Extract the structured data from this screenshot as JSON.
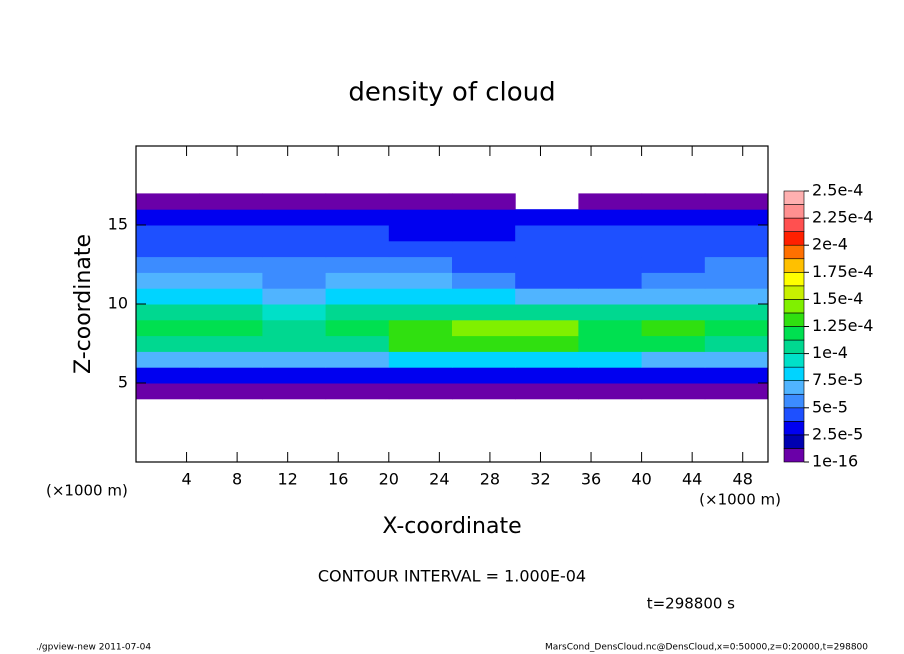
{
  "chart_data": {
    "type": "heatmap",
    "title": "density of cloud",
    "xlabel": "X-coordinate",
    "ylabel": "Z-coordinate",
    "x_unit": "(×1000 m)",
    "y_unit": "(×1000 m)",
    "xlim": [
      0,
      50
    ],
    "ylim": [
      0,
      20
    ],
    "xticks": [
      4,
      8,
      12,
      16,
      20,
      24,
      28,
      32,
      36,
      40,
      44,
      48
    ],
    "yticks": [
      5,
      10,
      15
    ],
    "x": [
      2.5,
      7.5,
      12.5,
      17.5,
      22.5,
      27.5,
      32.5,
      37.5,
      42.5,
      47.5
    ],
    "z": [
      4.5,
      5.5,
      6.5,
      7.5,
      8.5,
      9.5,
      10.5,
      11.5,
      12.5,
      13.5,
      14.5,
      15.5,
      16.5
    ],
    "values": [
      [
        5e-06,
        5e-06,
        5e-06,
        5e-06,
        5e-06,
        5e-06,
        5e-06,
        5e-06,
        5e-06,
        5e-06
      ],
      [
        3e-05,
        3e-05,
        2.8e-05,
        3e-05,
        3e-05,
        3.2e-05,
        3.4e-05,
        3e-05,
        3e-05,
        3.4e-05
      ],
      [
        7e-05,
        7e-05,
        6.8e-05,
        7.2e-05,
        7.6e-05,
        7.8e-05,
        8e-05,
        7.6e-05,
        7.2e-05,
        7e-05
      ],
      [
        0.00011,
        0.00011,
        0.000105,
        0.00011,
        0.000125,
        0.00013,
        0.00013,
        0.000115,
        0.00012,
        0.00011
      ],
      [
        0.00012,
        0.000118,
        0.00011,
        0.000118,
        0.000135,
        0.00014,
        0.000138,
        0.00012,
        0.000128,
        0.000115
      ],
      [
        0.0001,
        0.0001,
        9.5e-05,
        0.0001,
        0.00011,
        0.000112,
        0.000105,
        0.0001,
        0.000102,
        0.0001
      ],
      [
        7.5e-05,
        7.8e-05,
        7.2e-05,
        8e-05,
        8.2e-05,
        7.8e-05,
        7e-05,
        6.8e-05,
        7.2e-05,
        7.4e-05
      ],
      [
        6.5e-05,
        6.6e-05,
        6.2e-05,
        6.8e-05,
        6.8e-05,
        6e-05,
        4.8e-05,
        4.2e-05,
        5.5e-05,
        6e-05
      ],
      [
        5.5e-05,
        5.6e-05,
        5.2e-05,
        5.5e-05,
        5.2e-05,
        4.5e-05,
        4e-05,
        4.5e-05,
        4.8e-05,
        5.2e-05
      ],
      [
        4.6e-05,
        4.7e-05,
        4.5e-05,
        4.6e-05,
        4.2e-05,
        4e-05,
        4.2e-05,
        4.6e-05,
        4.4e-05,
        4.6e-05
      ],
      [
        4e-05,
        4e-05,
        3.8e-05,
        4e-05,
        3.6e-05,
        3.4e-05,
        4.8e-05,
        4.4e-05,
        4e-05,
        4e-05
      ],
      [
        3e-05,
        3e-05,
        2.8e-05,
        3e-05,
        2.8e-05,
        2.8e-05,
        3.2e-05,
        3e-05,
        3e-05,
        3e-05
      ],
      [
        5e-06,
        5e-06,
        5e-06,
        5e-06,
        5e-06,
        5e-06,
        null,
        5e-06,
        5e-06,
        5e-06
      ]
    ],
    "colorbar_ticks": [
      {
        "value": 1e-16,
        "label": "1e-16"
      },
      {
        "value": 2.5e-05,
        "label": "2.5e-5"
      },
      {
        "value": 5e-05,
        "label": "5e-5"
      },
      {
        "value": 7.5e-05,
        "label": "7.5e-5"
      },
      {
        "value": 0.0001,
        "label": "1e-4"
      },
      {
        "value": 0.000125,
        "label": "1.25e-4"
      },
      {
        "value": 0.00015,
        "label": "1.5e-4"
      },
      {
        "value": 0.000175,
        "label": "1.75e-4"
      },
      {
        "value": 0.0002,
        "label": "2e-4"
      },
      {
        "value": 0.000225,
        "label": "2.25e-4"
      },
      {
        "value": 0.00025,
        "label": "2.5e-4"
      }
    ],
    "colors": [
      "#6a00a8",
      "#0000b0",
      "#0000f0",
      "#1e50ff",
      "#3c8cff",
      "#50b4ff",
      "#00d4ff",
      "#00e0c8",
      "#00d890",
      "#00e050",
      "#30e010",
      "#80f000",
      "#c8f000",
      "#ffff00",
      "#ffc000",
      "#ff7000",
      "#ff2000",
      "#ff5050",
      "#ff9090",
      "#ffb0b0"
    ],
    "contour_note": "CONTOUR INTERVAL = 1.000E-04",
    "time_note": "t=298800 s",
    "footer_left": "./gpview-new  2011-07-04",
    "footer_right": "MarsCond_DensCloud.nc@DensCloud,x=0:50000,z=0:20000,t=298800"
  }
}
